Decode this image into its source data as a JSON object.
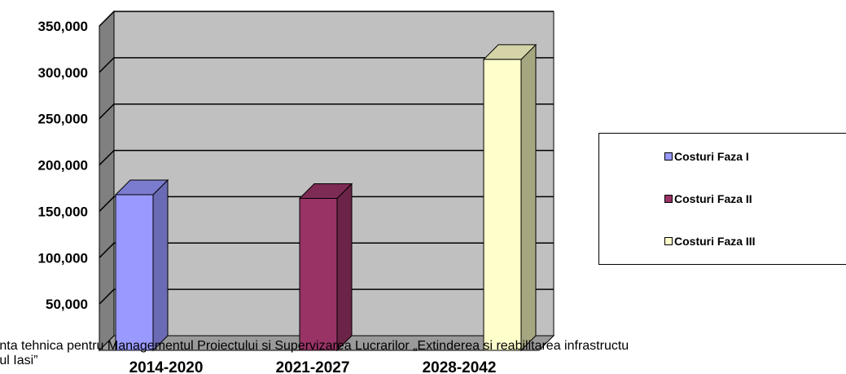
{
  "chart_data": {
    "type": "bar",
    "categories": [
      "2014-2020",
      "2021-2027",
      "2028-2042"
    ],
    "series": [
      {
        "name": "Costuri Faza I",
        "category": "2014-2020",
        "value": 168000,
        "color": "#9999ff",
        "side": "#6b6bb5",
        "top": "#7b7bd0"
      },
      {
        "name": "Costuri Faza II",
        "category": "2021-2027",
        "value": 164000,
        "color": "#993366",
        "side": "#6b2447",
        "top": "#7d2a54"
      },
      {
        "name": "Costuri Faza III",
        "category": "2028-2042",
        "value": 314000,
        "color": "#ffffcc",
        "side": "#a6a680",
        "top": "#d4d4a8"
      }
    ],
    "yticks": [
      "50,000",
      "100,000",
      "150,000",
      "200,000",
      "250,000",
      "300,000",
      "350,000"
    ],
    "ylim": [
      0,
      350000
    ],
    "grid": true,
    "legend_position": "right"
  },
  "footer": {
    "line1": "tenta tehnica pentru Managementul Proiectului si Supervizarea Lucrarilor „Extinderea si reabilitarea infrastructu",
    "line2": "etul Iasi”"
  }
}
